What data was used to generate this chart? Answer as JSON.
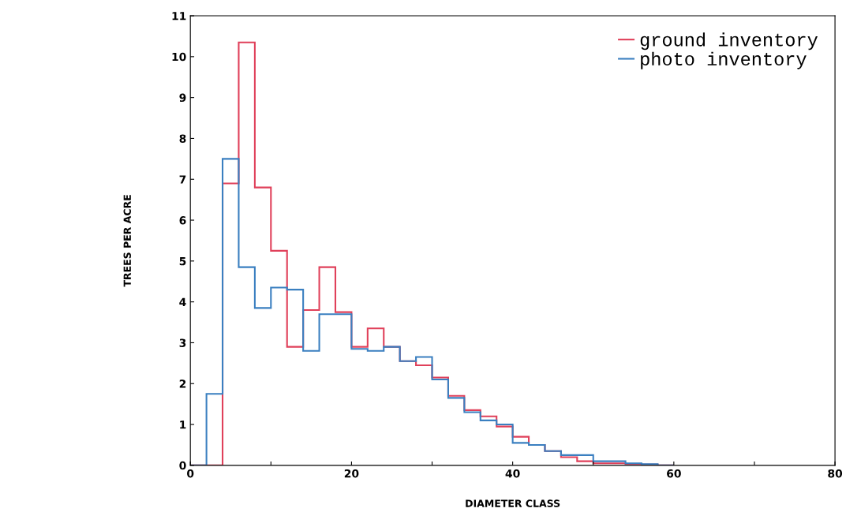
{
  "chart_data": {
    "type": "histogram",
    "xlabel": "DIAMETER CLASS",
    "ylabel": "TREES PER ACRE",
    "bins": [
      0,
      2,
      4,
      6,
      8,
      10,
      12,
      14,
      16,
      18,
      20,
      22,
      24,
      26,
      28,
      30,
      32,
      34,
      36,
      38,
      40,
      42,
      44,
      46,
      48,
      50,
      52,
      54,
      56,
      58,
      60
    ],
    "series": [
      {
        "name": "ground inventory",
        "color": "#e0405a",
        "values": [
          0,
          0,
          6.9,
          10.35,
          6.8,
          5.25,
          2.9,
          3.8,
          4.85,
          3.75,
          2.9,
          3.35,
          2.9,
          2.55,
          2.45,
          2.15,
          1.7,
          1.35,
          1.2,
          0.95,
          0.7,
          0.5,
          0.35,
          0.2,
          0.1,
          0.05,
          0.05,
          0.03,
          0.02,
          0
        ]
      },
      {
        "name": "photo inventory",
        "color": "#3a7fc0",
        "values": [
          0,
          1.75,
          7.5,
          4.85,
          3.85,
          4.35,
          4.3,
          2.8,
          3.7,
          3.7,
          2.85,
          2.8,
          2.9,
          2.55,
          2.65,
          2.1,
          1.65,
          1.3,
          1.1,
          1.0,
          0.55,
          0.5,
          0.35,
          0.25,
          0.25,
          0.1,
          0.1,
          0.05,
          0.03,
          0
        ]
      }
    ],
    "xlim": [
      0,
      80
    ],
    "ylim": [
      0,
      11
    ],
    "xticks": [
      0,
      {
        "value": 10,
        "label": null
      },
      20,
      {
        "value": 30,
        "label": null
      },
      40,
      {
        "value": 50,
        "label": null
      },
      60,
      {
        "value": 70,
        "label": null
      },
      80
    ],
    "yticks": [
      0,
      1,
      2,
      3,
      4,
      5,
      6,
      7,
      8,
      9,
      10,
      11
    ],
    "legend": "top right",
    "grid": false
  }
}
